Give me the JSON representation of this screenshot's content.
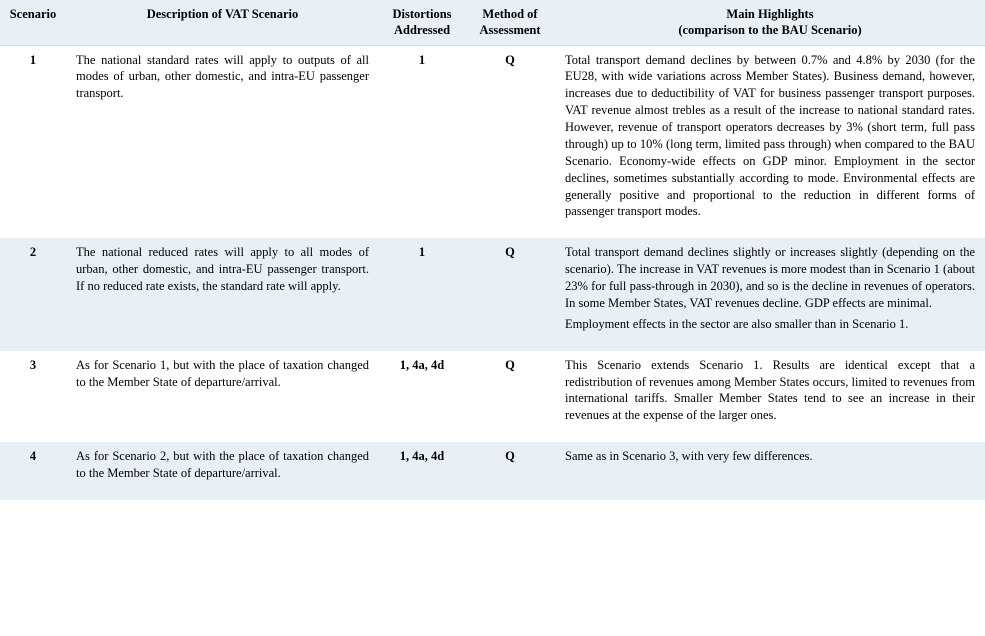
{
  "colors": {
    "header_bg": "#e8f0f5",
    "alt_row_bg": "#e8f0f5",
    "plain_row_bg": "#ffffff",
    "text": "#000000",
    "border": "#d0dce4"
  },
  "columns": {
    "scenario": "Scenario",
    "description": "Description of VAT Scenario",
    "distortions_line1": "Distortions",
    "distortions_line2": "Addressed",
    "method_line1": "Method of",
    "method_line2": "Assessment",
    "highlights_line1": "Main Highlights",
    "highlights_line2": "(comparison to the BAU Scenario)"
  },
  "rows": [
    {
      "scenario": "1",
      "description": "The national standard rates will apply to outputs of all modes of urban, other domestic, and intra-EU passenger transport.",
      "distortions": "1",
      "method": "Q",
      "highlights": [
        "Total transport demand declines by between 0.7% and 4.8% by 2030 (for the EU28, with wide variations across Member States). Business demand, however, increases due to deductibility of VAT for business passenger transport purposes. VAT revenue almost trebles as a result of the increase to national standard rates. However, revenue of transport operators decreases by 3% (short term, full pass through) up to 10% (long term, limited pass through) when compared to the BAU Scenario. Economy-wide effects on GDP minor. Employment in the sector declines, sometimes substantially according to mode. Environmental effects are generally positive and proportional to the reduction in different forms of passenger transport modes."
      ]
    },
    {
      "scenario": "2",
      "description": "The national reduced rates will apply to all modes of urban, other domestic, and intra-EU passenger transport. If no reduced rate exists, the standard rate will apply.",
      "distortions": "1",
      "method": "Q",
      "highlights": [
        "Total transport demand declines slightly or increases slightly (depending on the scenario). The increase in VAT revenues is more modest than in Scenario 1 (about 23% for full pass-through in 2030), and so is the decline in revenues of operators. In some Member States, VAT revenues decline. GDP effects are minimal.",
        "Employment effects in the sector are also smaller than in Scenario 1."
      ]
    },
    {
      "scenario": "3",
      "description": "As for Scenario 1, but with the place of taxation changed to the Member State of departure/arrival.",
      "distortions": "1, 4a, 4d",
      "method": "Q",
      "highlights": [
        "This Scenario extends Scenario 1. Results are identical except that a redistribution of revenues among Member States occurs, limited to revenues from international tariffs. Smaller Member States tend to see an increase in their revenues at the expense of the larger ones."
      ]
    },
    {
      "scenario": "4",
      "description": "As for Scenario 2, but with the place of taxation changed to the Member State of departure/arrival.",
      "distortions": "1, 4a, 4d",
      "method": "Q",
      "highlights": [
        "Same as in Scenario 3, with very few differences."
      ]
    }
  ]
}
